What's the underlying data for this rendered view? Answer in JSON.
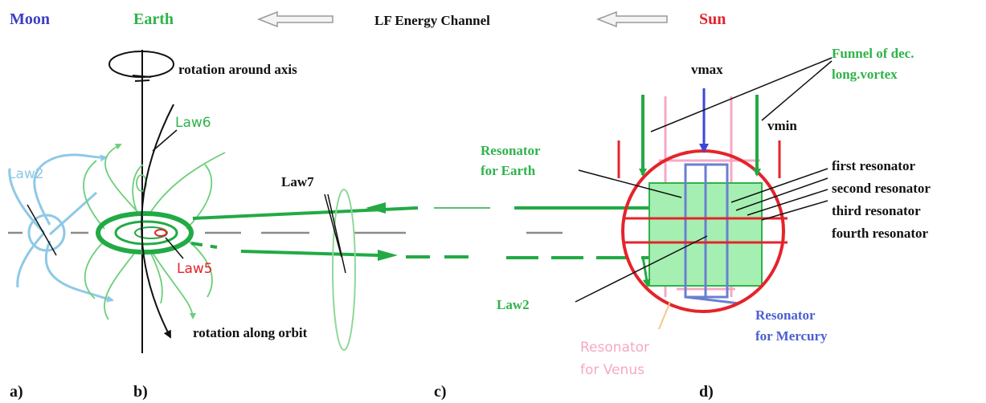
{
  "colors": {
    "moon": "#3b3fc4",
    "earth": "#2fb34a",
    "sun": "#e5232b",
    "green": "#22aa44",
    "light_green": "#8fd89a",
    "fill_green": "#a6efb2",
    "light_blue": "#8ec9e6",
    "blue": "#6a7fd0",
    "pink": "#f5a9c4",
    "black": "#111111",
    "gray": "#888888"
  },
  "header": {
    "moon": "Moon",
    "earth": "Earth",
    "channel": "LF Energy Channel",
    "sun": "Sun"
  },
  "left": {
    "rotation_axis": "rotation around axis",
    "rotation_orbit": "rotation along orbit",
    "law6": "Law6",
    "law2": "Law2",
    "law5": "Law5",
    "law7": "Law7"
  },
  "right": {
    "vmax": "vmax",
    "vmin": "vmin",
    "funnel_line1": "Funnel of dec.",
    "funnel_line2": "long.vortex",
    "res_earth_line1": "Resonator",
    "res_earth_line2": "for Earth",
    "first": "first resonator",
    "second": "second resonator",
    "third": "third resonator",
    "fourth": "fourth resonator",
    "law2": "Law2",
    "res_mercury_line1": "Resonator",
    "res_mercury_line2": "for Mercury",
    "res_venus_line1": "Resonator",
    "res_venus_line2": "for Venus"
  },
  "panels": {
    "a": "a)",
    "b": "b)",
    "c": "c)",
    "d": "d)"
  }
}
